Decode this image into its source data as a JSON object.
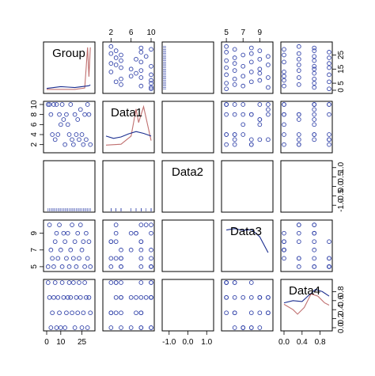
{
  "chart_data": {
    "type": "scatter",
    "title": "",
    "variables": [
      {
        "name": "Group",
        "range": [
          0,
          32
        ],
        "ticks": [
          0,
          10,
          25
        ],
        "tick_labels": [
          "0",
          "10",
          "25"
        ],
        "tick_side": "bottom"
      },
      {
        "name": "Data1",
        "range": [
          1,
          10
        ],
        "ticks": [
          2,
          6,
          10
        ],
        "tick_labels": [
          "2",
          "6",
          "10"
        ],
        "tick_side": "top",
        "left_ticks": [
          2,
          4,
          6,
          8,
          10
        ],
        "left_tick_labels": [
          "2",
          "4",
          "6",
          "8",
          "10"
        ]
      },
      {
        "name": "Data2",
        "range": [
          -1.2,
          1.2
        ],
        "ticks": [
          -1.0,
          0.0,
          1.0
        ],
        "tick_labels": [
          "-1.0",
          "0.0",
          "1.0"
        ],
        "tick_side": "bottom",
        "right_ticks": [
          -1.0,
          -0.5,
          0.0,
          0.5,
          1.0
        ],
        "right_tick_labels": [
          "-1.0",
          "-0.5",
          "0.0",
          "0.5",
          "1.0"
        ]
      },
      {
        "name": "Data3",
        "range": [
          4.8,
          10.2
        ],
        "ticks": [
          5,
          7,
          9
        ],
        "tick_labels": [
          "5",
          "7",
          "9"
        ],
        "tick_side": "top",
        "left_ticks": [
          5,
          7,
          9
        ],
        "left_tick_labels": [
          "5",
          "7",
          "9"
        ]
      },
      {
        "name": "Data4",
        "range": [
          0,
          1.0
        ],
        "ticks": [
          0.0,
          0.4,
          0.8
        ],
        "tick_labels": [
          "0.0",
          "0.4",
          "0.8"
        ],
        "tick_side": "bottom",
        "right_ticks": [
          0.0,
          0.2,
          0.4,
          0.6,
          0.8
        ],
        "right_tick_labels": [
          "0.0",
          "0.2",
          "0.4",
          "0.6",
          "0.8"
        ]
      }
    ],
    "group_right_ticks": [
      0,
      5,
      15,
      25
    ],
    "group_right_tick_labels": [
      "0",
      "5",
      "15",
      "25"
    ],
    "observations": [
      {
        "Group": 1,
        "Data1": 10,
        "Data3": 5,
        "Data4": 1.0
      },
      {
        "Group": 2,
        "Data1": 10,
        "Data3": 10,
        "Data4": 0.67
      },
      {
        "Group": 3,
        "Data1": 8,
        "Data3": 7,
        "Data4": 0.0
      },
      {
        "Group": 4,
        "Data1": 4,
        "Data3": 6,
        "Data4": 0.33
      },
      {
        "Group": 5,
        "Data1": 10,
        "Data3": 5,
        "Data4": 0.67
      },
      {
        "Group": 6,
        "Data1": 3,
        "Data3": 8,
        "Data4": 1.0
      },
      {
        "Group": 7,
        "Data1": 10,
        "Data3": 9,
        "Data4": 0.0
      },
      {
        "Group": 8,
        "Data1": 4,
        "Data3": 6,
        "Data4": 0.67
      },
      {
        "Group": 9,
        "Data1": 8,
        "Data3": 10,
        "Data4": 0.33
      },
      {
        "Group": 10,
        "Data1": 6,
        "Data3": 7,
        "Data4": 0.0
      },
      {
        "Group": 11,
        "Data1": 10,
        "Data3": 5,
        "Data4": 1.0
      },
      {
        "Group": 12,
        "Data1": 7,
        "Data3": 9,
        "Data4": 0.67
      },
      {
        "Group": 13,
        "Data1": 2,
        "Data3": 8,
        "Data4": 0.0
      },
      {
        "Group": 14,
        "Data1": 8,
        "Data3": 6,
        "Data4": 0.33
      },
      {
        "Group": 15,
        "Data1": 6,
        "Data3": 9,
        "Data4": 0.67
      },
      {
        "Group": 16,
        "Data1": 4,
        "Data3": 5,
        "Data4": 1.0
      },
      {
        "Group": 17,
        "Data1": 10,
        "Data3": 7,
        "Data4": 0.67
      },
      {
        "Group": 18,
        "Data1": 3,
        "Data3": 10,
        "Data4": 0.33
      },
      {
        "Group": 19,
        "Data1": 2,
        "Data3": 6,
        "Data4": 1.0
      },
      {
        "Group": 20,
        "Data1": 8,
        "Data3": 8,
        "Data4": 0.0
      },
      {
        "Group": 21,
        "Data1": 4,
        "Data3": 5,
        "Data4": 0.67
      },
      {
        "Group": 22,
        "Data1": 7,
        "Data3": 9,
        "Data4": 0.33
      },
      {
        "Group": 23,
        "Data1": 3,
        "Data3": 6,
        "Data4": 1.0
      },
      {
        "Group": 24,
        "Data1": 9,
        "Data3": 10,
        "Data4": 0.67
      },
      {
        "Group": 25,
        "Data1": 4,
        "Data3": 7,
        "Data4": 0.0
      },
      {
        "Group": 26,
        "Data1": 2,
        "Data3": 8,
        "Data4": 0.33
      },
      {
        "Group": 27,
        "Data1": 8,
        "Data3": 5,
        "Data4": 1.0
      },
      {
        "Group": 28,
        "Data1": 3,
        "Data3": 9,
        "Data4": 0.67
      },
      {
        "Group": 29,
        "Data1": 10,
        "Data3": 6,
        "Data4": 0.0
      },
      {
        "Group": 30,
        "Data1": 8,
        "Data3": 8,
        "Data4": 0.67
      },
      {
        "Group": 31,
        "Data1": 2,
        "Data3": 5,
        "Data4": 0.33
      }
    ],
    "density_curves": {
      "Group": [
        [
          0,
          0.04
        ],
        [
          5,
          0.06
        ],
        [
          10,
          0.08
        ],
        [
          15,
          0.07
        ],
        [
          20,
          0.06
        ],
        [
          25,
          0.08
        ],
        [
          30,
          0.1
        ],
        [
          31,
          0.12
        ]
      ],
      "Data1": [
        [
          1,
          0.3
        ],
        [
          2.5,
          0.25
        ],
        [
          4,
          0.28
        ],
        [
          5.5,
          0.35
        ],
        [
          7,
          0.4
        ],
        [
          8.5,
          0.36
        ],
        [
          10,
          0.3
        ]
      ],
      "Data3": [
        [
          5,
          0.85
        ],
        [
          6,
          0.88
        ],
        [
          7,
          0.84
        ],
        [
          8,
          0.86
        ],
        [
          9,
          0.7
        ],
        [
          10,
          0.35
        ]
      ],
      "Data4": [
        [
          0,
          0.55
        ],
        [
          0.2,
          0.6
        ],
        [
          0.4,
          0.58
        ],
        [
          0.55,
          0.72
        ],
        [
          0.7,
          0.85
        ],
        [
          0.85,
          0.8
        ],
        [
          1.0,
          0.7
        ]
      ]
    },
    "histogram_curves": {
      "Group": [
        [
          0,
          0.02
        ],
        [
          20,
          0.02
        ],
        [
          27,
          0.05
        ],
        [
          29,
          0.95
        ],
        [
          30,
          0.3
        ],
        [
          31,
          0.95
        ]
      ],
      "Data1": [
        [
          1,
          0.1
        ],
        [
          4,
          0.12
        ],
        [
          6,
          0.3
        ],
        [
          7,
          0.9
        ],
        [
          7.5,
          0.6
        ],
        [
          8.5,
          0.95
        ],
        [
          10,
          0.2
        ]
      ],
      "Data4": [
        [
          0,
          0.52
        ],
        [
          0.2,
          0.4
        ],
        [
          0.3,
          0.3
        ],
        [
          0.45,
          0.45
        ],
        [
          0.6,
          0.75
        ],
        [
          0.75,
          0.7
        ],
        [
          0.9,
          0.55
        ],
        [
          1.0,
          0.5
        ]
      ]
    },
    "colors": {
      "points": "#3344aa",
      "density": "#1a2d8f",
      "histogram": "#c07070",
      "axis": "#000000"
    },
    "grid": false,
    "legend": "none"
  }
}
